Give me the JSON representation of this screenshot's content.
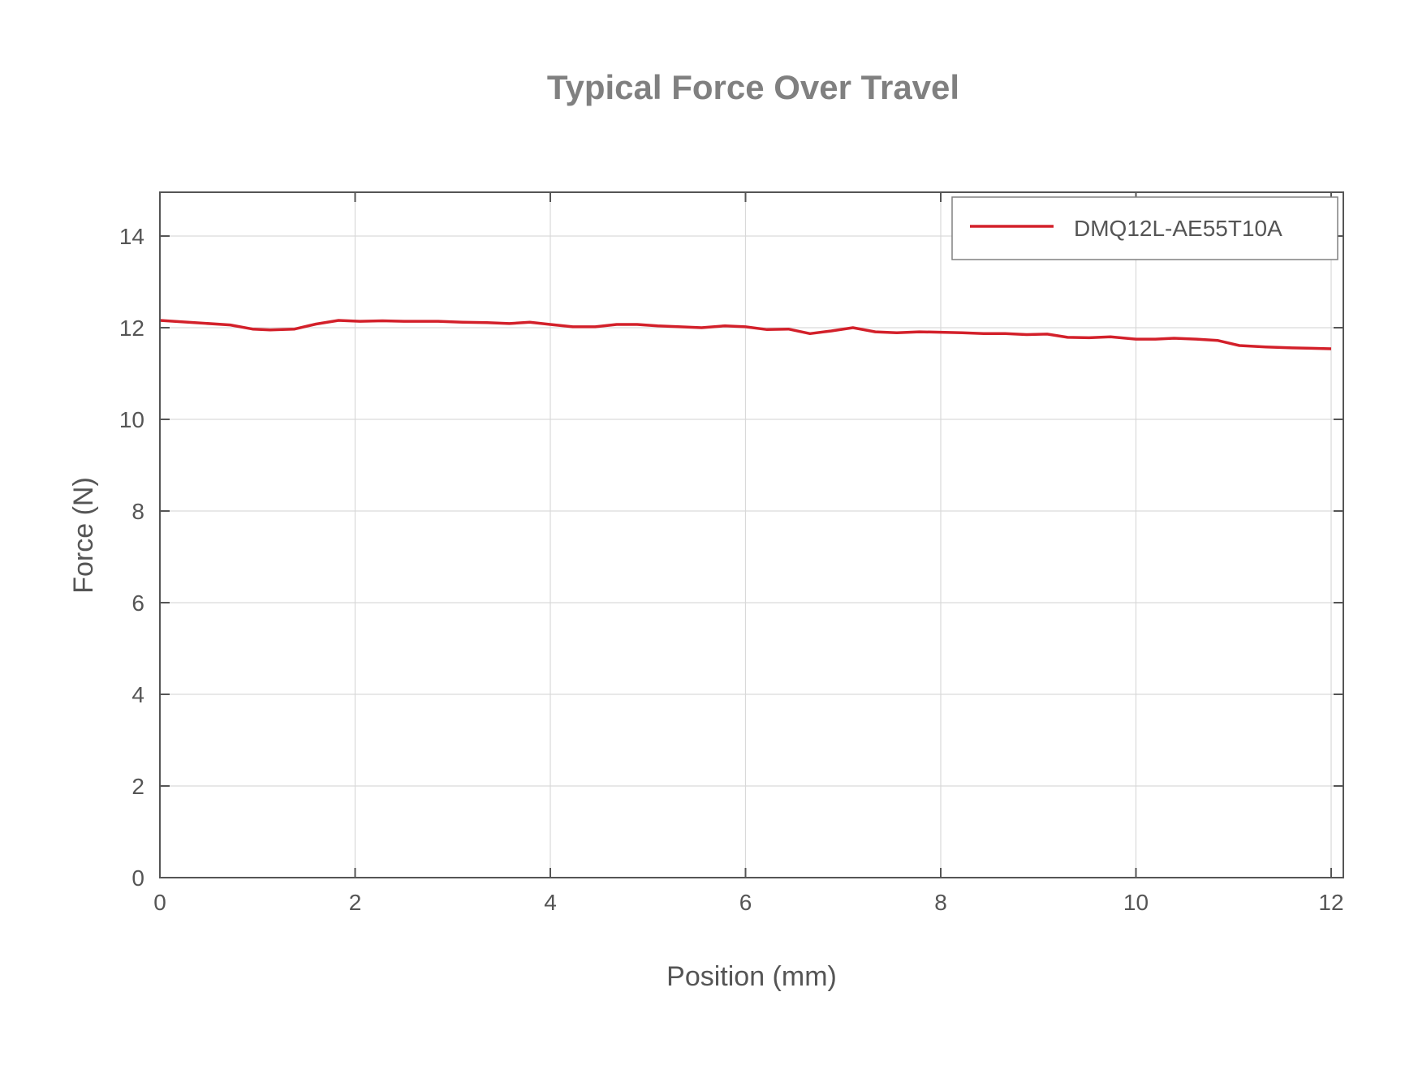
{
  "chart_data": {
    "type": "line",
    "title": "Typical Force Over Travel",
    "xlabel": "Position (mm)",
    "ylabel": "Force (N)",
    "xlim": [
      0,
      12.12
    ],
    "ylim": [
      0,
      15
    ],
    "xticks": [
      0,
      2,
      4,
      6,
      8,
      10,
      12
    ],
    "yticks": [
      0,
      2,
      4,
      6,
      8,
      10,
      12,
      14
    ],
    "grid": true,
    "legend_position": "upper right",
    "series": [
      {
        "name": "DMQ12L-AE55T10A",
        "color": "#d3202a",
        "x": [
          0,
          0.72,
          0.95,
          1.13,
          1.38,
          1.6,
          1.83,
          2.05,
          2.28,
          2.5,
          2.85,
          3.1,
          3.35,
          3.58,
          3.79,
          4.0,
          4.23,
          4.46,
          4.68,
          4.89,
          5.1,
          5.33,
          5.55,
          5.79,
          6.0,
          6.22,
          6.44,
          6.66,
          6.88,
          7.1,
          7.33,
          7.55,
          7.78,
          8.0,
          8.22,
          8.44,
          8.66,
          8.88,
          9.09,
          9.3,
          9.52,
          9.74,
          10.0,
          10.2,
          10.39,
          10.62,
          10.84,
          11.06,
          11.33,
          11.6,
          11.8,
          12.0
        ],
        "y": [
          12.16,
          12.06,
          11.97,
          11.95,
          11.97,
          12.08,
          12.16,
          12.14,
          12.15,
          12.14,
          12.14,
          12.12,
          12.11,
          12.09,
          12.12,
          12.07,
          12.02,
          12.02,
          12.07,
          12.07,
          12.04,
          12.02,
          12.0,
          12.04,
          12.02,
          11.96,
          11.97,
          11.87,
          11.93,
          12.0,
          11.91,
          11.89,
          11.91,
          11.9,
          11.89,
          11.87,
          11.87,
          11.85,
          11.86,
          11.79,
          11.78,
          11.8,
          11.75,
          11.75,
          11.77,
          11.75,
          11.72,
          11.61,
          11.58,
          11.56,
          11.55,
          11.54
        ]
      }
    ]
  },
  "labels": {
    "title": "Typical Force Over Travel",
    "xlabel": "Position (mm)",
    "ylabel": "Force (N)",
    "legend": "DMQ12L-AE55T10A"
  }
}
